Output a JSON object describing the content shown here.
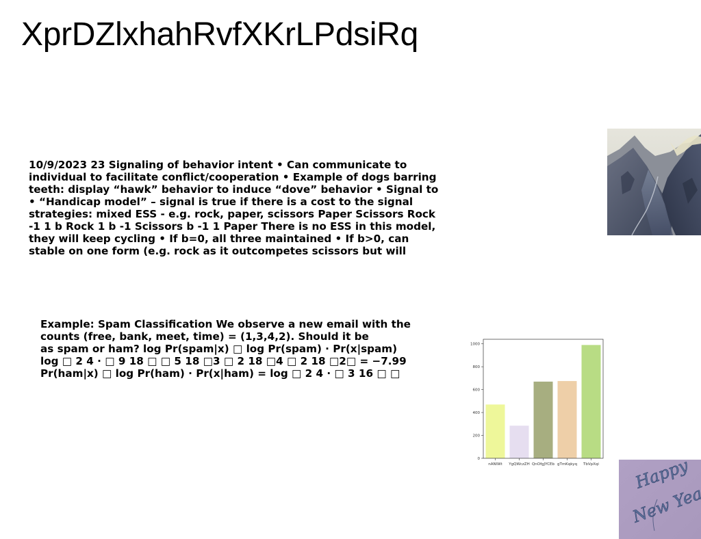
{
  "title": "XprDZlxhahRvfXKrLPdsiRq",
  "text_blocks": {
    "block1": {
      "lines": [
        "10/9/2023 23 Signaling of behavior intent • Can communicate to",
        "individual to facilitate conflict/cooperation • Example of dogs barring",
        "teeth: display “hawk” behavior to induce “dove” behavior • Signal to",
        "• “Handicap model” – signal is true if there is a cost to the signal",
        "strategies: mixed ESS - e.g. rock, paper, scissors Paper Scissors Rock",
        "-1 1 b Rock 1 b -1 Scissors b -1 1 Paper There is no ESS in this model,",
        "they will keep cycling • If b=0, all three maintained • If b>0, can",
        "stable on one form (e.g. rock as it outcompetes scissors but will"
      ]
    },
    "block2": {
      "lines": [
        "Example: Spam Classification We observe a new email with the",
        "counts (free, bank, meet, time) = (1,3,4,2). Should it be",
        "as spam or ham? log Pr(spam|x) □ log Pr(spam) · Pr(x|spam)",
        "log □ 2 4 · □ 9 18 □ □ 5 18 □3 □ 2 18 □4 □ 2 18 □2□ = −7.99",
        "Pr(ham|x) □ log Pr(ham) · Pr(x|ham) = log □ 2 4 · □ 3 16 □ □"
      ]
    }
  },
  "images": {
    "mountain_photo": {
      "subject": "mountain valley landscape photo"
    },
    "new_year_card": {
      "subject": "happy new year lettering",
      "lettering": "Happy New Year"
    }
  },
  "chart_data": {
    "type": "bar",
    "categories": [
      "nANlWt",
      "YgQWczZH",
      "QnOfgJYCEb",
      "gTmKqkyq",
      "TbVpXqi"
    ],
    "values": [
      470,
      285,
      670,
      675,
      990
    ],
    "colors": [
      "#eef79a",
      "#e6def0",
      "#a7ae80",
      "#eecfa8",
      "#b8dc84"
    ],
    "ylim": [
      0,
      1040
    ],
    "yticks": [
      0,
      200,
      400,
      600,
      800,
      1000
    ],
    "title": "",
    "xlabel": "",
    "ylabel": "",
    "grid": false
  }
}
